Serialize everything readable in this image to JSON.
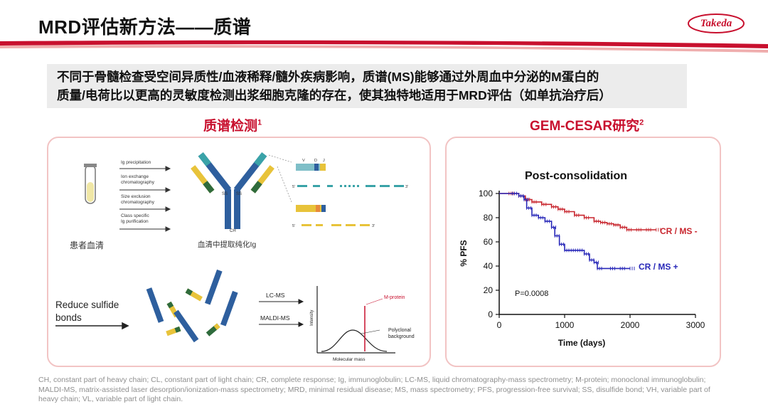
{
  "header": {
    "title": "MRD评估新方法——质谱",
    "logo_text": "Takeda"
  },
  "summary": {
    "line1": "不同于骨髓检查受空间异质性/血液稀释/髓外疾病影响，质谱(MS)能够通过外周血中分泌的M蛋白的",
    "line2": "质量/电荷比以更高的灵敏度检测出浆细胞克隆的存在，使其独特地适用于MRD评估（如单抗治疗后）"
  },
  "left_section": {
    "title": "质谱检测",
    "superscript": "1",
    "steps": [
      "Ig precipitation",
      "Ion exchange",
      "chromatography",
      "Size exclusion",
      "chromatography",
      "Class specific",
      "Ig purification"
    ],
    "patient_serum_label": "患者血清",
    "purified_ig_label": "血清中提取纯化Ig",
    "reduce_line1": "Reduce sulfide",
    "reduce_line2": "bonds",
    "lcms_label": "LC-MS",
    "maldi_label": "MALDI-MS",
    "mprotein_label": "M-protein",
    "polyclonal_line1": "Polyclonal",
    "polyclonal_line2": "background",
    "intensity_label": "Intensity",
    "molecular_mass_label": "Molecular mass",
    "antibody_labels": {
      "ch": "CH",
      "ss1": "SS",
      "ss2": "SS"
    },
    "seq_labels": {
      "v": "V",
      "d": "D",
      "j": "J",
      "five": "5'",
      "three": "3'"
    }
  },
  "right_section": {
    "title": "GEM-CESAR研究",
    "superscript": "2"
  },
  "colors": {
    "accent": "#c8102e",
    "ms_neg": "#c8262e",
    "ms_pos": "#2727b8",
    "panel_border": "#f2c4c4",
    "ig_blue": "#2e5f9e",
    "ig_yellow": "#e8c33a",
    "ig_teal": "#3aa3a8",
    "ig_green": "#2f6b3c"
  },
  "chart_data": {
    "type": "line",
    "title": "Post-consolidation",
    "xlabel": "Time (days)",
    "ylabel": "% PFS",
    "xlim": [
      0,
      3000
    ],
    "ylim": [
      0,
      100
    ],
    "xticks": [
      0,
      1000,
      2000,
      3000
    ],
    "yticks": [
      0,
      20,
      40,
      60,
      80,
      100
    ],
    "annotation": "P=0.0008",
    "series": [
      {
        "name": "CR / MS -",
        "color": "#c8262e",
        "x": [
          0,
          150,
          300,
          400,
          500,
          650,
          800,
          900,
          1000,
          1150,
          1300,
          1450,
          1550,
          1650,
          1750,
          1850,
          1950,
          2100,
          2250,
          2400
        ],
        "y": [
          100,
          100,
          98,
          95,
          93,
          91,
          89,
          87,
          85,
          82,
          80,
          77,
          76,
          75,
          74,
          72,
          70,
          70,
          70,
          70
        ]
      },
      {
        "name": "CR / MS +",
        "color": "#2727b8",
        "x": [
          0,
          200,
          300,
          380,
          420,
          500,
          600,
          700,
          800,
          850,
          920,
          1000,
          1100,
          1200,
          1300,
          1380,
          1450,
          1500,
          1700,
          1850,
          2000
        ],
        "y": [
          100,
          100,
          98,
          95,
          88,
          82,
          80,
          77,
          72,
          65,
          58,
          53,
          53,
          53,
          50,
          45,
          43,
          38,
          38,
          38,
          38
        ]
      }
    ]
  },
  "footnote": {
    "line1": "CH, constant part of heavy chain; CL, constant part of light chain; CR, complete response; Ig, immunoglobulin; LC-MS, liquid chromatography-mass spectrometry; M-protein; monoclonal immunoglobulin;",
    "line2": "MALDI-MS, matrix-assisted laser desorption/ionization-mass spectrometry; MRD, minimal residual disease; MS, mass spectrometry; PFS, progression-free survival; SS, disulfide bond; VH, variable part of",
    "line3": "heavy chain; VL, variable part of light chain."
  }
}
